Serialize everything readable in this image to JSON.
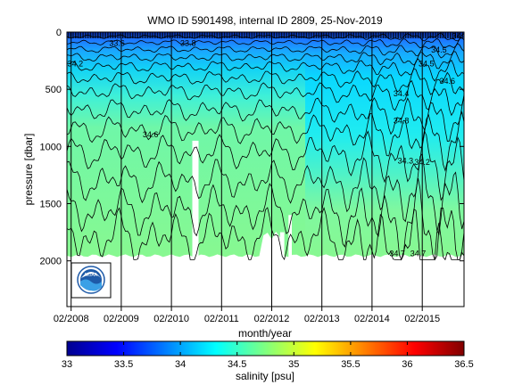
{
  "chart_data": {
    "type": "heatmap",
    "title": "WMO ID 5901498, internal ID 2809, 25-Nov-2019",
    "xlabel": "month/year",
    "ylabel": "pressure [dbar]",
    "x_ticks": [
      "02/2008",
      "02/2009",
      "02/2010",
      "02/2011",
      "02/2012",
      "02/2013",
      "02/2014",
      "02/2015"
    ],
    "x_range": [
      "2008-01",
      "2015-11"
    ],
    "y_ticks": [
      0,
      500,
      1000,
      1500,
      2000
    ],
    "ylim": [
      2400,
      0
    ],
    "y_reversed": true,
    "grid": "vertical lines at each February",
    "colorbar": {
      "label": "salinity [psu]",
      "ticks": [
        "33",
        "33.5",
        "34",
        "34.5",
        "35",
        "35.5",
        "36",
        "36.5"
      ],
      "range": [
        33,
        36.5
      ],
      "colormap": "jet"
    },
    "contour_labels": [
      "33.6",
      "33.8",
      "34.2",
      "34.6",
      "34.3",
      "34.2",
      "34.7",
      "34.7",
      "34.4",
      "34.5",
      "34.5",
      "34.6",
      "34.8",
      "34.4"
    ],
    "salinity_field": {
      "surface_psu": 33.6,
      "1000dbar_psu": 34.4,
      "deep_psu": 34.7,
      "late_period_1000dbar_psu": 34.3
    },
    "profile_depth_dbar": [
      1960,
      1960
    ],
    "logo": "NOAA"
  }
}
